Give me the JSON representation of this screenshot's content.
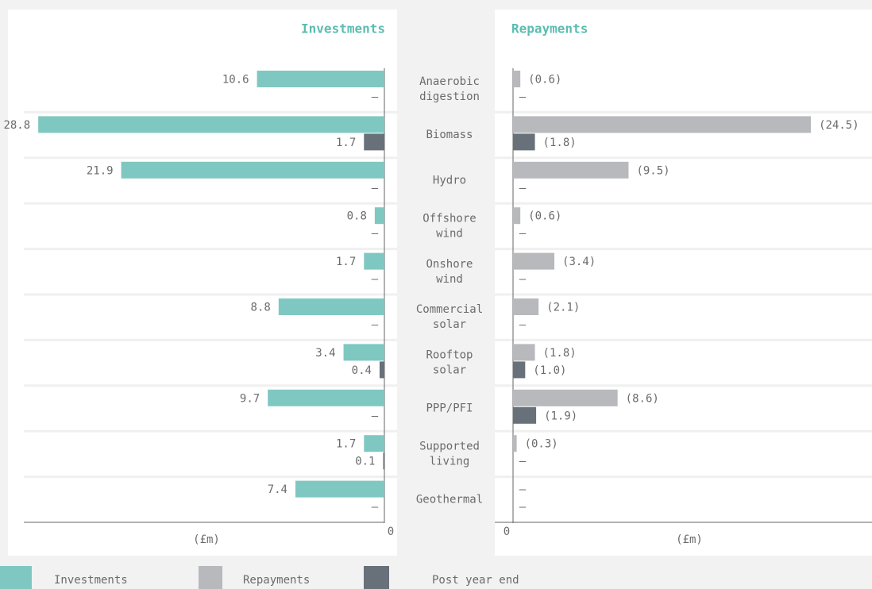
{
  "chart_data": {
    "type": "bar",
    "categories": [
      "Anaerobic digestion",
      "Biomass",
      "Hydro",
      "Offshore wind",
      "Onshore wind",
      "Commercial solar",
      "Rooftop solar",
      "PPP/PFI",
      "Supported living",
      "Geothermal"
    ],
    "panels": [
      {
        "title": "Investments",
        "direction": "left",
        "xlim": [
          0,
          30
        ],
        "xticks": [
          0
        ],
        "xlabel": "(£m)",
        "series": [
          {
            "name": "Investments",
            "color": "#7fc8c1",
            "values": [
              10.6,
              28.8,
              21.9,
              0.8,
              1.7,
              8.8,
              3.4,
              9.7,
              1.7,
              7.4
            ],
            "value_labels": [
              "10.6",
              "28.8",
              "21.9",
              "0.8",
              "1.7",
              "8.8",
              "3.4",
              "9.7",
              "1.7",
              "7.4"
            ]
          },
          {
            "name": "Post year end",
            "color": "#68717a",
            "values": [
              null,
              1.7,
              null,
              null,
              null,
              null,
              0.4,
              null,
              0.1,
              null
            ],
            "value_labels": [
              "–",
              "1.7",
              "–",
              "–",
              "–",
              "–",
              "0.4",
              "–",
              "0.1",
              "–"
            ]
          }
        ]
      },
      {
        "title": "Repayments",
        "direction": "right",
        "xlim": [
          0,
          29
        ],
        "xticks": [
          0
        ],
        "xlabel": "(£m)",
        "series": [
          {
            "name": "Repayments",
            "color": "#b8b9bd",
            "values": [
              0.6,
              24.5,
              9.5,
              0.6,
              3.4,
              2.1,
              1.8,
              8.6,
              0.3,
              null
            ],
            "value_labels": [
              "(0.6)",
              "(24.5)",
              "(9.5)",
              "(0.6)",
              "(3.4)",
              "(2.1)",
              "(1.8)",
              "(8.6)",
              "(0.3)",
              "–"
            ]
          },
          {
            "name": "Post year end",
            "color": "#68717a",
            "values": [
              null,
              1.8,
              null,
              null,
              null,
              null,
              1.0,
              1.9,
              null,
              null
            ],
            "value_labels": [
              "–",
              "(1.8)",
              "–",
              "–",
              "–",
              "–",
              "(1.0)",
              "(1.9)",
              "–",
              "–"
            ]
          }
        ]
      }
    ]
  }
}
